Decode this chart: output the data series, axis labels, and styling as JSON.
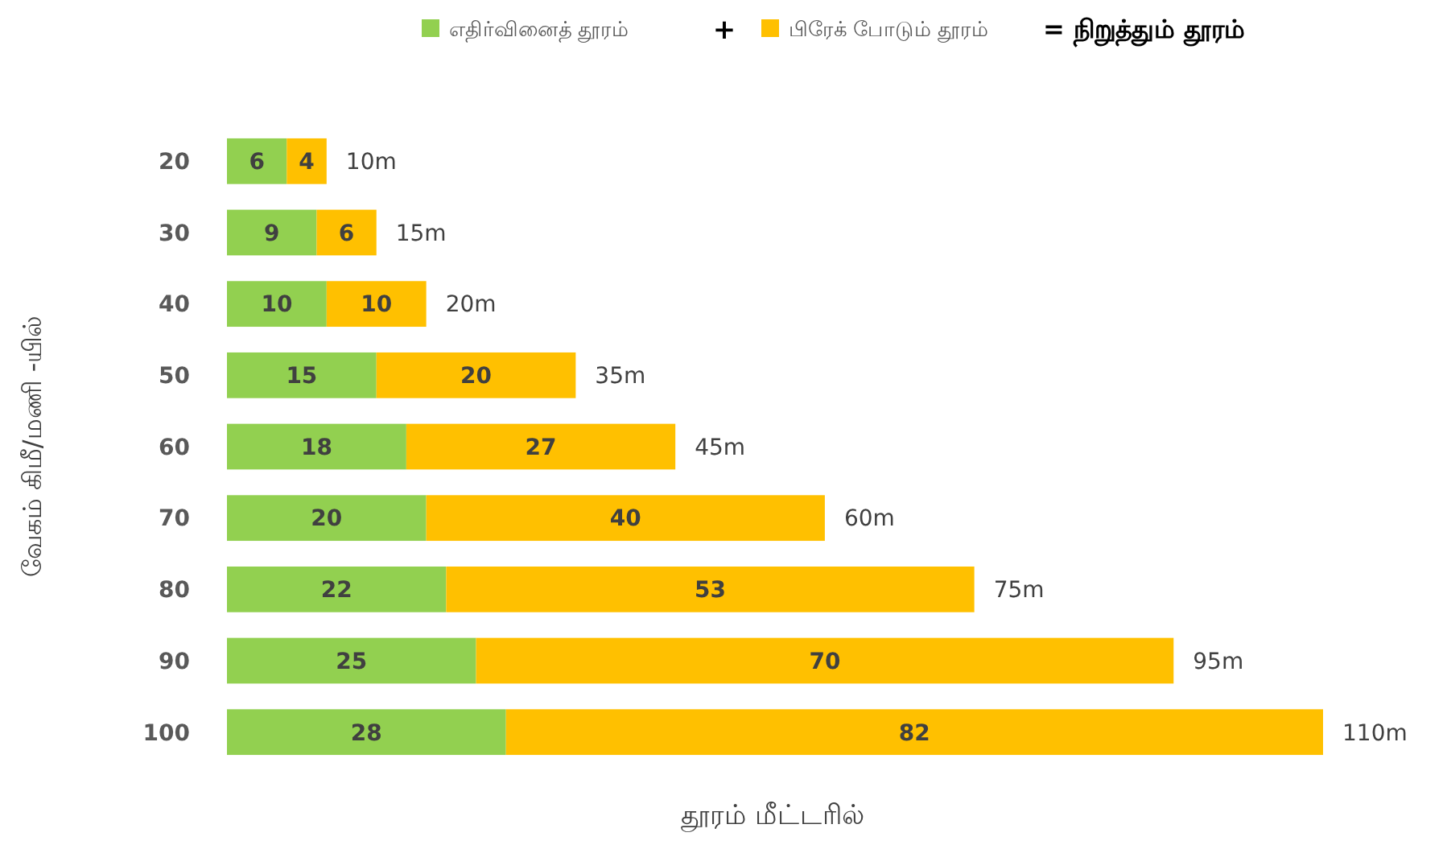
{
  "chart_data": {
    "type": "bar",
    "orientation": "horizontal",
    "stacked": true,
    "xlabel": "தூரம் மீட்டரில்",
    "ylabel": "வேகம் கிமீ/மணி -யில்",
    "categories": [
      "20",
      "30",
      "40",
      "50",
      "60",
      "70",
      "80",
      "90",
      "100"
    ],
    "series": [
      {
        "name": "எதிர்வினைத் தூரம்",
        "color": "#92d050",
        "values": [
          6,
          9,
          10,
          15,
          18,
          20,
          22,
          25,
          28
        ]
      },
      {
        "name": "பிரேக் போடும் தூரம்",
        "color": "#ffc000",
        "values": [
          4,
          6,
          10,
          20,
          27,
          40,
          53,
          70,
          82
        ]
      }
    ],
    "totals": [
      "10m",
      "15m",
      "20m",
      "35m",
      "45m",
      "60m",
      "75m",
      "95m",
      "110m"
    ],
    "data_labels": true,
    "legend": "top",
    "grid": false,
    "annotations": [
      "+",
      "= நிறுத்தும் தூரம்"
    ]
  }
}
